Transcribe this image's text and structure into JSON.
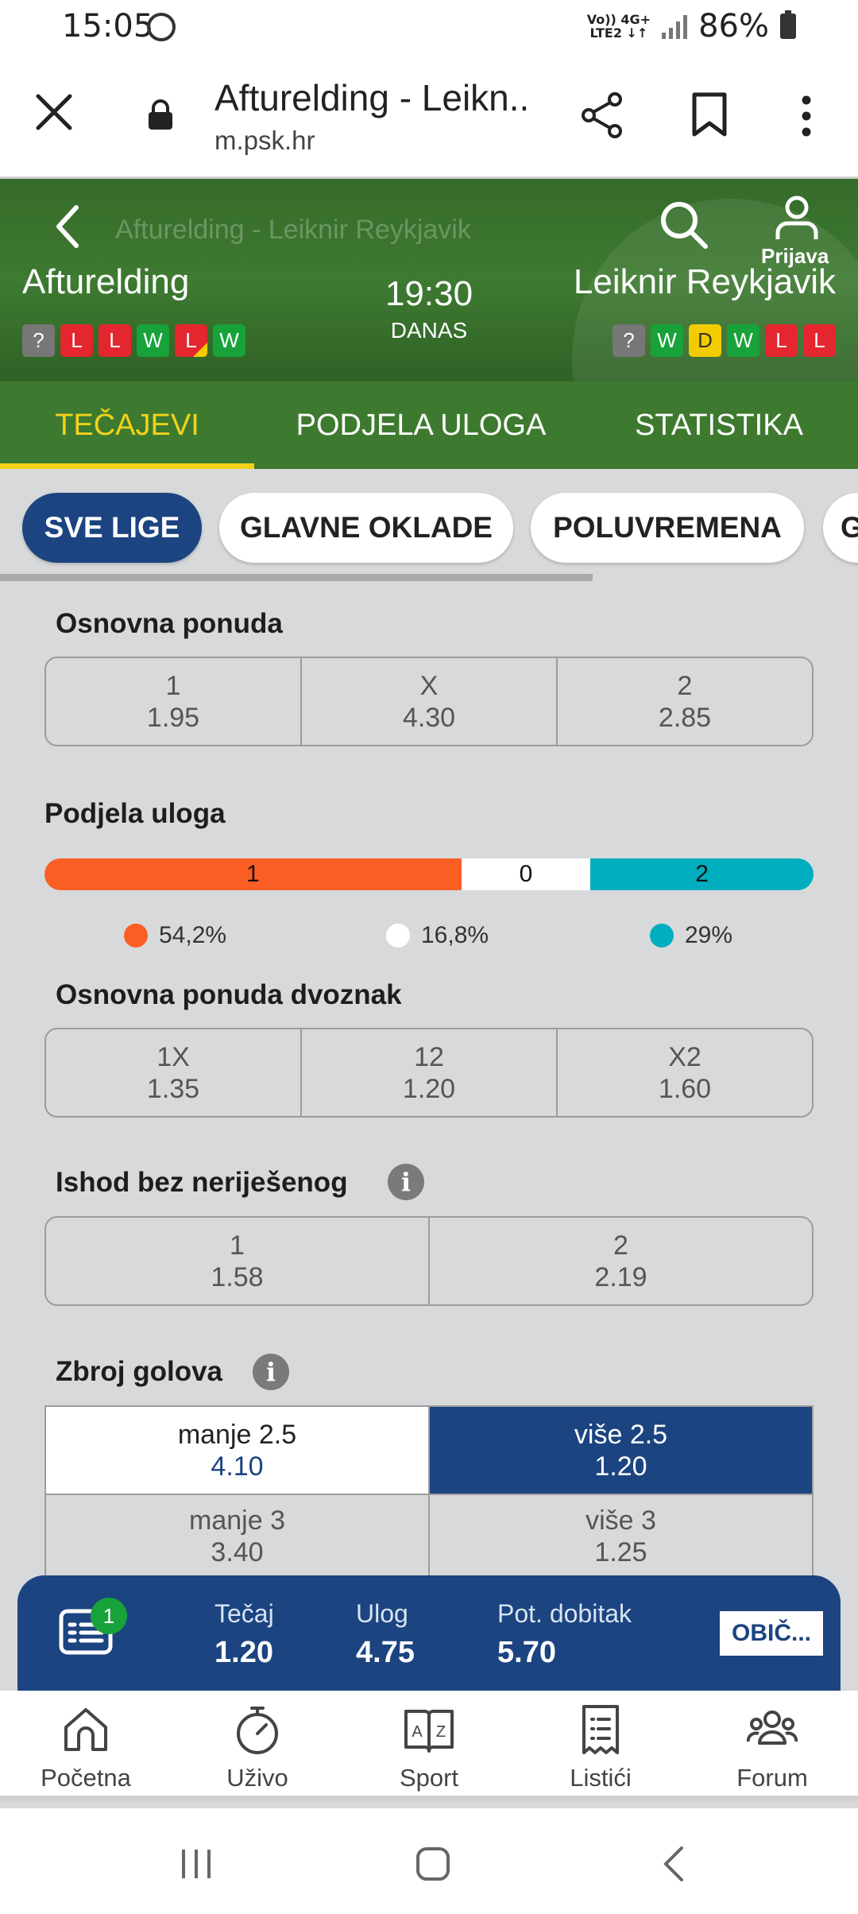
{
  "status_bar": {
    "time": "15:05",
    "network_top": "Vo)) 4G+",
    "network_bottom": "LTE2 ↓↑",
    "battery": "86%"
  },
  "browser": {
    "title": "Afturelding - Leikn...",
    "url": "m.psk.hr"
  },
  "match": {
    "header_title": "Afturelding - Leiknir Reykjavik",
    "home_team": "Afturelding",
    "away_team": "Leiknir Reykjavik",
    "kickoff_time": "19:30",
    "day": "DANAS",
    "login_label": "Prijava",
    "home_form": [
      "?",
      "L",
      "L",
      "W",
      "L",
      "W"
    ],
    "away_form": [
      "?",
      "W",
      "D",
      "W",
      "L",
      "L"
    ]
  },
  "tabs": [
    {
      "label": "TEČAJEVI",
      "active": true
    },
    {
      "label": "PODJELA ULOGA",
      "active": false
    },
    {
      "label": "STATISTIKA",
      "active": false
    }
  ],
  "chips": [
    {
      "label": "SVE LIGE",
      "active": true
    },
    {
      "label": "GLAVNE OKLADE",
      "active": false
    },
    {
      "label": "POLUVREMENA",
      "active": false
    },
    {
      "label": "G",
      "active": false
    }
  ],
  "osnovna_ponuda": {
    "title": "Osnovna ponuda",
    "outcomes": [
      {
        "label": "1",
        "odd": "1.95"
      },
      {
        "label": "X",
        "odd": "4.30"
      },
      {
        "label": "2",
        "odd": "2.85"
      }
    ]
  },
  "podjela_uloga": {
    "title": "Podjela uloga",
    "segments": [
      {
        "label": "1",
        "share": 54.2,
        "percent_text": "54,2%",
        "color": "#fb5e24"
      },
      {
        "label": "0",
        "share": 16.8,
        "percent_text": "16,8%",
        "color": "#ffffff"
      },
      {
        "label": "2",
        "share": 29,
        "percent_text": "29%",
        "color": "#00aebf"
      }
    ]
  },
  "dvoznak": {
    "title": "Osnovna ponuda dvoznak",
    "outcomes": [
      {
        "label": "1X",
        "odd": "1.35"
      },
      {
        "label": "12",
        "odd": "1.20"
      },
      {
        "label": "X2",
        "odd": "1.60"
      }
    ]
  },
  "ishod_bez_nerijesenog": {
    "title": "Ishod bez neriješenog",
    "outcomes": [
      {
        "label": "1",
        "odd": "1.58"
      },
      {
        "label": "2",
        "odd": "2.19"
      }
    ]
  },
  "zbroj_golova": {
    "title": "Zbroj golova",
    "rows": [
      [
        {
          "label": "manje 2.5",
          "odd": "4.10"
        },
        {
          "label": "više 2.5",
          "odd": "1.20"
        }
      ],
      [
        {
          "label": "manje 3",
          "odd": "3.40"
        },
        {
          "label": "više 3",
          "odd": "1.25"
        }
      ]
    ]
  },
  "betslip": {
    "count": "1",
    "odds_label": "Tečaj",
    "odds_value": "1.20",
    "stake_label": "Ulog",
    "stake_value": "4.75",
    "win_label": "Pot. dobitak",
    "win_value": "5.70",
    "type_label": "OBIČ..."
  },
  "bottom_nav": [
    {
      "label": "Početna",
      "icon": "home-icon"
    },
    {
      "label": "Uživo",
      "icon": "stopwatch-icon"
    },
    {
      "label": "Sport",
      "icon": "book-az-icon"
    },
    {
      "label": "Listići",
      "icon": "ticket-icon"
    },
    {
      "label": "Forum",
      "icon": "people-icon"
    }
  ],
  "colors": {
    "green": "#3d7a2f",
    "navy": "#1b4480",
    "yellow": "#f3d21a",
    "orange": "#fb5e24",
    "teal": "#00aebf"
  }
}
